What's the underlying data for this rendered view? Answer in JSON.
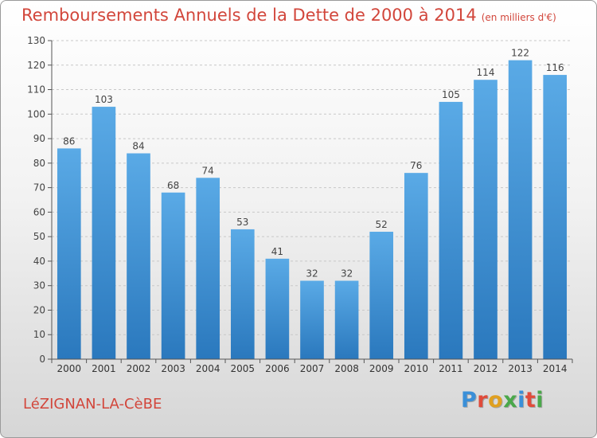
{
  "header": {
    "title": "Remboursements Annuels de la Dette de 2000 à 2014",
    "unit": "(en milliers d'€)"
  },
  "footer": {
    "town": "LéZIGNAN-LA-CèBE",
    "logo_letters": [
      "P",
      "r",
      "o",
      "x",
      "i",
      "t",
      "i"
    ],
    "logo_colors": [
      "#3a8fd8",
      "#e04b3a",
      "#e0a020",
      "#4aa84a",
      "#3a8fd8",
      "#e04b3a",
      "#4aa84a"
    ]
  },
  "chart_data": {
    "type": "bar",
    "title": "Remboursements Annuels de la Dette de 2000 à 2014",
    "xlabel": "",
    "ylabel": "",
    "categories": [
      "2000",
      "2001",
      "2002",
      "2003",
      "2004",
      "2005",
      "2006",
      "2007",
      "2008",
      "2009",
      "2010",
      "2011",
      "2012",
      "2013",
      "2014"
    ],
    "values": [
      86,
      103,
      84,
      68,
      74,
      53,
      41,
      32,
      32,
      52,
      76,
      105,
      114,
      122,
      116
    ],
    "ylim": [
      0,
      130
    ],
    "yticks": [
      0,
      10,
      20,
      30,
      40,
      50,
      60,
      70,
      80,
      90,
      100,
      110,
      120,
      130
    ],
    "grid": true,
    "bar_color_light": "#5aaae6",
    "bar_color_dark": "#2a78bd"
  }
}
